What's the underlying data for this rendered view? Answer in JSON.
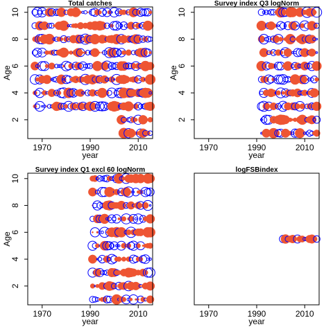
{
  "chart_data": [
    {
      "type": "scatter",
      "title": "Total catches",
      "xlabel": "year",
      "ylabel": "Age",
      "xlim": [
        1964,
        2016
      ],
      "ylim": [
        0.6,
        10.4
      ],
      "x_ticks": [
        1970,
        1990,
        2010
      ],
      "y_ticks": [
        2,
        4,
        6,
        8,
        10
      ],
      "years": [
        1967,
        2015
      ],
      "ages": [
        1,
        2,
        3,
        4,
        5,
        6,
        7,
        8,
        9,
        10
      ],
      "age_start_year": {
        "1": 2003,
        "2": 2003
      },
      "marker_encoding": "open blue circle = positive residual, filled red circle = negative residual",
      "colors": {
        "positive": "#0000ff",
        "negative": "#ee5533"
      }
    },
    {
      "type": "scatter",
      "title": "Survey index Q3 logNorm",
      "xlabel": "year",
      "ylabel": "Age",
      "xlim": [
        1964,
        2016
      ],
      "ylim": [
        0.6,
        10.4
      ],
      "x_ticks": [
        1970,
        1990,
        2010
      ],
      "y_ticks": [
        2,
        4,
        6,
        8,
        10
      ],
      "years": [
        1992,
        2015
      ],
      "ages": [
        1,
        2,
        3,
        4,
        5,
        6,
        7,
        8,
        9,
        10
      ],
      "age_start_year": {},
      "marker_encoding": "open blue circle = positive residual, filled red circle = negative residual",
      "colors": {
        "positive": "#0000ff",
        "negative": "#ee5533"
      }
    },
    {
      "type": "scatter",
      "title": "Survey index Q1 excl 60 logNorm",
      "xlabel": "year",
      "ylabel": "Age",
      "xlim": [
        1964,
        2016
      ],
      "ylim": [
        0.6,
        10.4
      ],
      "x_ticks": [
        1970,
        1990,
        2010
      ],
      "y_ticks": [
        2,
        4,
        6,
        8,
        10
      ],
      "years": [
        1991,
        2015
      ],
      "ages": [
        1,
        2,
        3,
        4,
        5,
        6,
        7,
        8,
        9,
        10
      ],
      "age_start_year": {},
      "marker_encoding": "open blue circle = positive residual, filled red circle = negative residual",
      "colors": {
        "positive": "#0000ff",
        "negative": "#ee5533"
      }
    },
    {
      "type": "scatter",
      "title": "logFSBindex",
      "xlabel": "year",
      "ylabel": "",
      "xlim": [
        1964,
        2016
      ],
      "ylim": [
        0.6,
        10.4
      ],
      "x_ticks": [
        1970,
        1990,
        2010
      ],
      "y_ticks": [],
      "years": [
        2001,
        2015
      ],
      "ages": [
        5.5
      ],
      "age_start_year": {},
      "marker_encoding": "open blue circle = positive residual, filled red circle = negative residual",
      "colors": {
        "positive": "#0000ff",
        "negative": "#ee5533"
      }
    }
  ]
}
